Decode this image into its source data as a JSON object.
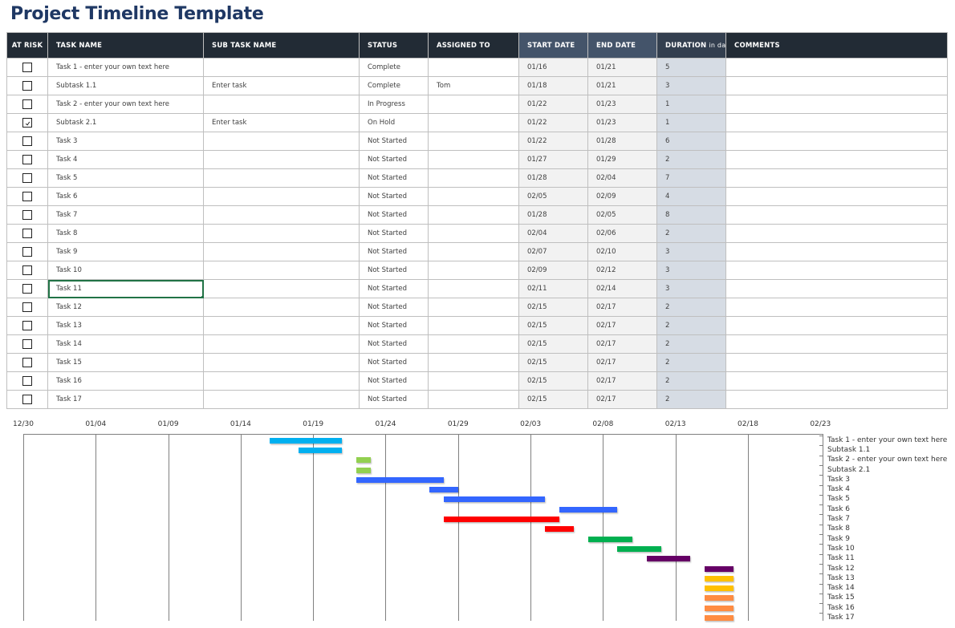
{
  "title": "Project Timeline Template",
  "columns": {
    "at_risk": "AT RISK",
    "task_name": "TASK NAME",
    "sub_task_name": "SUB TASK NAME",
    "status": "STATUS",
    "assigned_to": "ASSIGNED TO",
    "start_date": "START DATE",
    "end_date": "END DATE",
    "duration": "DURATION",
    "duration_unit": "in days",
    "comments": "COMMENTS"
  },
  "rows": [
    {
      "at_risk": false,
      "task": "Task 1 - enter your own text here",
      "subtask": "",
      "status": "Complete",
      "assigned": "",
      "start": "01/16",
      "end": "01/21",
      "duration": "5",
      "comments": ""
    },
    {
      "at_risk": false,
      "task": "Subtask 1.1",
      "subtask": "Enter task",
      "status": "Complete",
      "assigned": "Tom",
      "start": "01/18",
      "end": "01/21",
      "duration": "3",
      "comments": ""
    },
    {
      "at_risk": false,
      "task": "Task 2 - enter your own text here",
      "subtask": "",
      "status": "In Progress",
      "assigned": "",
      "start": "01/22",
      "end": "01/23",
      "duration": "1",
      "comments": ""
    },
    {
      "at_risk": true,
      "task": "Subtask 2.1",
      "subtask": "Enter task",
      "status": "On Hold",
      "assigned": "",
      "start": "01/22",
      "end": "01/23",
      "duration": "1",
      "comments": ""
    },
    {
      "at_risk": false,
      "task": "Task 3",
      "subtask": "",
      "status": "Not Started",
      "assigned": "",
      "start": "01/22",
      "end": "01/28",
      "duration": "6",
      "comments": ""
    },
    {
      "at_risk": false,
      "task": "Task 4",
      "subtask": "",
      "status": "Not Started",
      "assigned": "",
      "start": "01/27",
      "end": "01/29",
      "duration": "2",
      "comments": ""
    },
    {
      "at_risk": false,
      "task": "Task 5",
      "subtask": "",
      "status": "Not Started",
      "assigned": "",
      "start": "01/28",
      "end": "02/04",
      "duration": "7",
      "comments": ""
    },
    {
      "at_risk": false,
      "task": "Task 6",
      "subtask": "",
      "status": "Not Started",
      "assigned": "",
      "start": "02/05",
      "end": "02/09",
      "duration": "4",
      "comments": ""
    },
    {
      "at_risk": false,
      "task": "Task 7",
      "subtask": "",
      "status": "Not Started",
      "assigned": "",
      "start": "01/28",
      "end": "02/05",
      "duration": "8",
      "comments": ""
    },
    {
      "at_risk": false,
      "task": "Task 8",
      "subtask": "",
      "status": "Not Started",
      "assigned": "",
      "start": "02/04",
      "end": "02/06",
      "duration": "2",
      "comments": ""
    },
    {
      "at_risk": false,
      "task": "Task 9",
      "subtask": "",
      "status": "Not Started",
      "assigned": "",
      "start": "02/07",
      "end": "02/10",
      "duration": "3",
      "comments": ""
    },
    {
      "at_risk": false,
      "task": "Task 10",
      "subtask": "",
      "status": "Not Started",
      "assigned": "",
      "start": "02/09",
      "end": "02/12",
      "duration": "3",
      "comments": ""
    },
    {
      "at_risk": false,
      "task": "Task 11",
      "subtask": "",
      "status": "Not Started",
      "assigned": "",
      "start": "02/11",
      "end": "02/14",
      "duration": "3",
      "comments": "",
      "selected": true
    },
    {
      "at_risk": false,
      "task": "Task 12",
      "subtask": "",
      "status": "Not Started",
      "assigned": "",
      "start": "02/15",
      "end": "02/17",
      "duration": "2",
      "comments": ""
    },
    {
      "at_risk": false,
      "task": "Task 13",
      "subtask": "",
      "status": "Not Started",
      "assigned": "",
      "start": "02/15",
      "end": "02/17",
      "duration": "2",
      "comments": ""
    },
    {
      "at_risk": false,
      "task": "Task 14",
      "subtask": "",
      "status": "Not Started",
      "assigned": "",
      "start": "02/15",
      "end": "02/17",
      "duration": "2",
      "comments": ""
    },
    {
      "at_risk": false,
      "task": "Task 15",
      "subtask": "",
      "status": "Not Started",
      "assigned": "",
      "start": "02/15",
      "end": "02/17",
      "duration": "2",
      "comments": ""
    },
    {
      "at_risk": false,
      "task": "Task 16",
      "subtask": "",
      "status": "Not Started",
      "assigned": "",
      "start": "02/15",
      "end": "02/17",
      "duration": "2",
      "comments": ""
    },
    {
      "at_risk": false,
      "task": "Task 17",
      "subtask": "",
      "status": "Not Started",
      "assigned": "",
      "start": "02/15",
      "end": "02/17",
      "duration": "2",
      "comments": ""
    }
  ],
  "colors": {
    "title": "#1f3864",
    "header_dark": "#222b35",
    "header_mid": "#44546a",
    "header_dur": "#333f4f",
    "date_cell": "#f2f2f2",
    "duration_cell": "#d6dce4",
    "selection": "#217346"
  },
  "gantt": {
    "ticks": [
      "12/30",
      "01/04",
      "01/09",
      "01/14",
      "01/19",
      "01/24",
      "01/29",
      "02/03",
      "02/08",
      "02/13",
      "02/18",
      "02/23"
    ],
    "tick_day_offsets": [
      0,
      5,
      10,
      15,
      20,
      25,
      30,
      35,
      40,
      45,
      50,
      55
    ],
    "bars": [
      {
        "label": "Task 1 - enter your own text here",
        "start_day": 17,
        "duration": 5,
        "color": "#00b0f0"
      },
      {
        "label": "Subtask 1.1",
        "start_day": 19,
        "duration": 3,
        "color": "#00b0f0"
      },
      {
        "label": "Task 2 - enter your own text here",
        "start_day": 23,
        "duration": 1,
        "color": "#92d050"
      },
      {
        "label": "Subtask 2.1",
        "start_day": 23,
        "duration": 1,
        "color": "#92d050"
      },
      {
        "label": "Task 3",
        "start_day": 23,
        "duration": 6,
        "color": "#3366ff"
      },
      {
        "label": "Task 4",
        "start_day": 28,
        "duration": 2,
        "color": "#3366ff"
      },
      {
        "label": "Task 5",
        "start_day": 29,
        "duration": 7,
        "color": "#3366ff"
      },
      {
        "label": "Task 6",
        "start_day": 37,
        "duration": 4,
        "color": "#3366ff"
      },
      {
        "label": "Task 7",
        "start_day": 29,
        "duration": 8,
        "color": "#ff0000"
      },
      {
        "label": "Task 8",
        "start_day": 36,
        "duration": 2,
        "color": "#ff0000"
      },
      {
        "label": "Task 9",
        "start_day": 39,
        "duration": 3,
        "color": "#00b050"
      },
      {
        "label": "Task 10",
        "start_day": 41,
        "duration": 3,
        "color": "#00b050"
      },
      {
        "label": "Task 11",
        "start_day": 43,
        "duration": 3,
        "color": "#660066"
      },
      {
        "label": "Task 12",
        "start_day": 47,
        "duration": 2,
        "color": "#660066"
      },
      {
        "label": "Task 13",
        "start_day": 47,
        "duration": 2,
        "color": "#ffc000"
      },
      {
        "label": "Task 14",
        "start_day": 47,
        "duration": 2,
        "color": "#ffc000"
      },
      {
        "label": "Task 15",
        "start_day": 47,
        "duration": 2,
        "color": "#ff8c42"
      },
      {
        "label": "Task 16",
        "start_day": 47,
        "duration": 2,
        "color": "#ff8c42"
      },
      {
        "label": "Task 17",
        "start_day": 47,
        "duration": 2,
        "color": "#ff8c42"
      }
    ]
  },
  "chart_data": {
    "type": "bar",
    "orientation": "horizontal-gantt",
    "title": "",
    "xlabel": "",
    "ylabel": "",
    "x_ticks": [
      "12/30",
      "01/04",
      "01/09",
      "01/14",
      "01/19",
      "01/24",
      "01/29",
      "02/03",
      "02/08",
      "02/13",
      "02/18",
      "02/23"
    ],
    "xlim": [
      "12/30",
      "02/23"
    ],
    "grid": "vertical",
    "legend": "none",
    "categories": [
      "Task 1 - enter your own text here",
      "Subtask 1.1",
      "Task 2 - enter your own text here",
      "Subtask 2.1",
      "Task 3",
      "Task 4",
      "Task 5",
      "Task 6",
      "Task 7",
      "Task 8",
      "Task 9",
      "Task 10",
      "Task 11",
      "Task 12",
      "Task 13",
      "Task 14",
      "Task 15",
      "Task 16",
      "Task 17"
    ],
    "start": [
      "01/16",
      "01/18",
      "01/22",
      "01/22",
      "01/22",
      "01/27",
      "01/28",
      "02/05",
      "01/28",
      "02/04",
      "02/07",
      "02/09",
      "02/11",
      "02/15",
      "02/15",
      "02/15",
      "02/15",
      "02/15",
      "02/15"
    ],
    "end": [
      "01/21",
      "01/21",
      "01/23",
      "01/23",
      "01/28",
      "01/29",
      "02/04",
      "02/09",
      "02/05",
      "02/06",
      "02/10",
      "02/12",
      "02/14",
      "02/17",
      "02/17",
      "02/17",
      "02/17",
      "02/17",
      "02/17"
    ],
    "values": [
      5,
      3,
      1,
      1,
      6,
      2,
      7,
      4,
      8,
      2,
      3,
      3,
      3,
      2,
      2,
      2,
      2,
      2,
      2
    ]
  }
}
